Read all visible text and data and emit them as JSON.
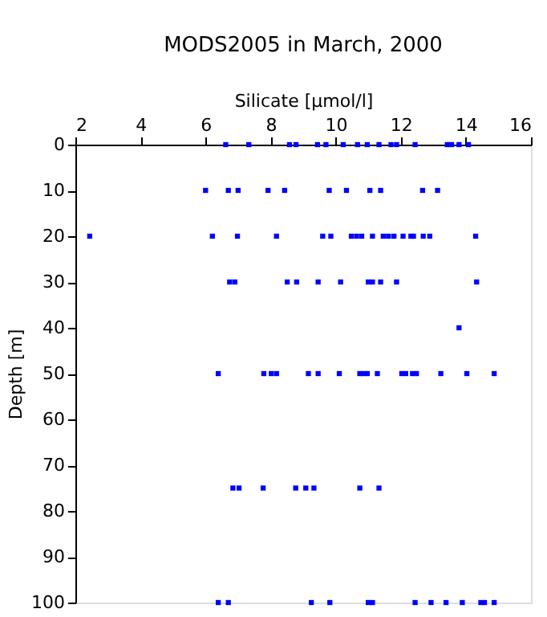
{
  "chart_data": {
    "type": "scatter",
    "title": "MODS2005 in March, 2000",
    "xlabel": "Silicate [µmol/l]",
    "ylabel": "Depth [m]",
    "xlim": [
      2,
      16
    ],
    "xticks": [
      2,
      4,
      6,
      8,
      10,
      12,
      14,
      16
    ],
    "ylim": [
      100,
      0
    ],
    "yticks": [
      0,
      10,
      20,
      30,
      40,
      50,
      60,
      70,
      80,
      90,
      100
    ],
    "grid": false,
    "marker": "square",
    "legend": false,
    "series": [
      {
        "color": "#0000ff",
        "x": [
          6.62,
          7.33,
          8.58,
          8.78,
          9.44,
          9.7,
          10.23,
          10.67,
          10.97,
          11.33,
          11.7,
          11.87,
          12.44,
          13.43,
          13.56,
          13.79,
          14.08,
          6.0,
          6.7,
          7.0,
          7.92,
          8.43,
          9.8,
          10.33,
          11.05,
          11.38,
          12.67,
          13.13,
          2.44,
          6.21,
          6.98,
          8.18,
          9.6,
          9.85,
          10.48,
          10.64,
          10.8,
          11.13,
          11.46,
          11.62,
          11.79,
          12.07,
          12.31,
          12.39,
          12.69,
          12.89,
          14.3,
          6.74,
          6.9,
          8.51,
          8.8,
          9.46,
          10.15,
          11.0,
          11.13,
          11.38,
          11.87,
          14.33,
          13.79,
          6.39,
          7.79,
          8.02,
          8.18,
          9.16,
          9.46,
          10.11,
          10.74,
          10.85,
          10.97,
          11.28,
          12.03,
          12.15,
          12.36,
          12.48,
          13.23,
          14.03,
          14.87,
          6.84,
          7.03,
          7.77,
          8.77,
          9.08,
          9.33,
          10.74,
          11.33,
          6.39,
          6.7,
          9.25,
          9.82,
          11.0,
          11.13,
          12.44,
          12.93,
          13.39,
          13.89,
          14.46,
          14.57,
          14.87
        ],
        "values": [
          0,
          0,
          0,
          0,
          0,
          0,
          0,
          0,
          0,
          0,
          0,
          0,
          0,
          0,
          0,
          0,
          0,
          10,
          10,
          10,
          10,
          10,
          10,
          10,
          10,
          10,
          10,
          10,
          20,
          20,
          20,
          20,
          20,
          20,
          20,
          20,
          20,
          20,
          20,
          20,
          20,
          20,
          20,
          20,
          20,
          20,
          20,
          30,
          30,
          30,
          30,
          30,
          30,
          30,
          30,
          30,
          30,
          30,
          40,
          50,
          50,
          50,
          50,
          50,
          50,
          50,
          50,
          50,
          50,
          50,
          50,
          50,
          50,
          50,
          50,
          50,
          50,
          75,
          75,
          75,
          75,
          75,
          75,
          75,
          75,
          100,
          100,
          100,
          100,
          100,
          100,
          100,
          100,
          100,
          100,
          100,
          100,
          100
        ]
      }
    ]
  }
}
